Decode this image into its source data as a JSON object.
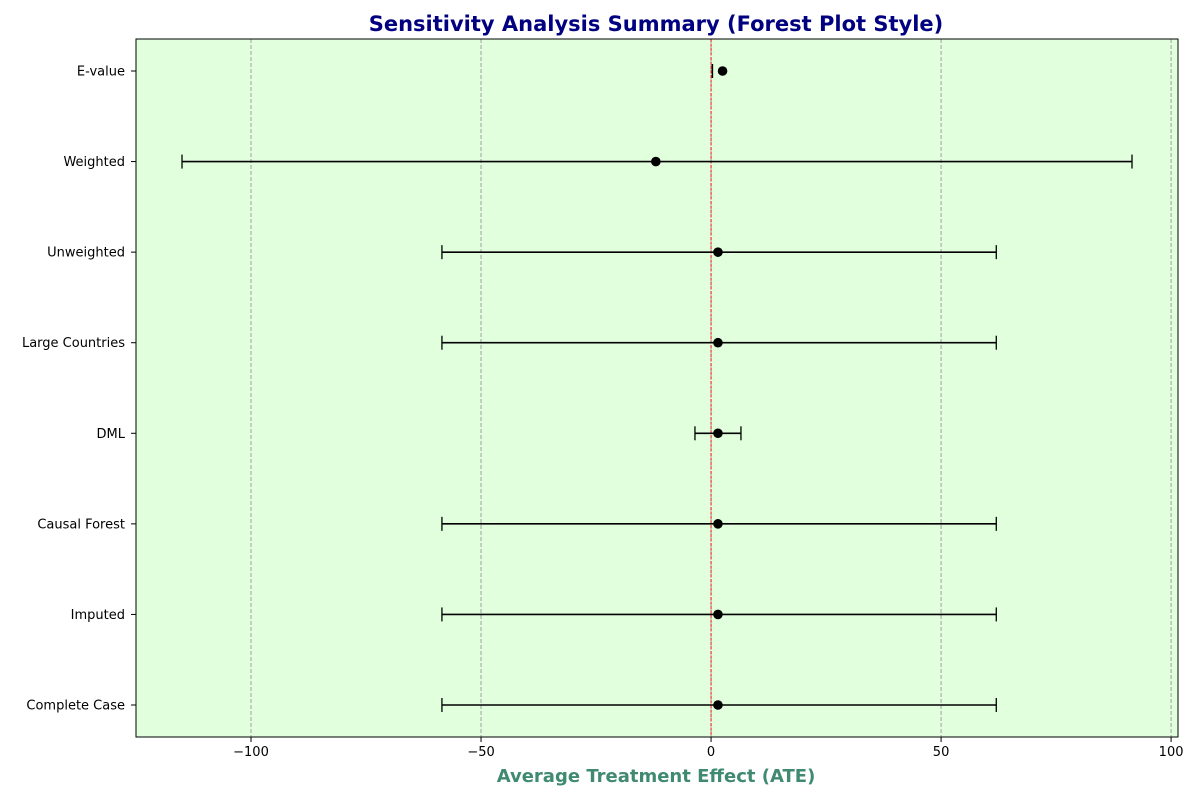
{
  "chart_data": {
    "type": "forest",
    "title": "Sensitivity Analysis Summary (Forest Plot Style)",
    "xlabel": "Average Treatment Effect (ATE)",
    "ylabel": "",
    "xlim": [
      -125,
      101.5
    ],
    "xticks": [
      -100,
      -50,
      0,
      50,
      100
    ],
    "xtick_labels": [
      "−100",
      "−50",
      "0",
      "50",
      "100"
    ],
    "reference_line": 0,
    "grid": {
      "x": true,
      "y": false,
      "style": "dashed"
    },
    "rows": [
      {
        "label": "E-value",
        "estimate": 2.5,
        "lower": 0.3,
        "upper": 0.3
      },
      {
        "label": "Weighted",
        "estimate": -12,
        "lower": -115,
        "upper": 91.5
      },
      {
        "label": "Unweighted",
        "estimate": 1.5,
        "lower": -58.5,
        "upper": 62
      },
      {
        "label": "Large Countries",
        "estimate": 1.5,
        "lower": -58.5,
        "upper": 62
      },
      {
        "label": "DML",
        "estimate": 1.5,
        "lower": -3.5,
        "upper": 6.5
      },
      {
        "label": "Causal Forest",
        "estimate": 1.5,
        "lower": -58.5,
        "upper": 62
      },
      {
        "label": "Imputed",
        "estimate": 1.5,
        "lower": -58.5,
        "upper": 62
      },
      {
        "label": "Complete Case",
        "estimate": 1.5,
        "lower": -58.5,
        "upper": 62
      }
    ],
    "colors": {
      "plot_background": "#e1ffdd",
      "title": "#000080",
      "xlabel": "#3f8a71",
      "reference_line": "#ff0000",
      "grid": "#a0a0a0",
      "marker": "#000000"
    }
  }
}
